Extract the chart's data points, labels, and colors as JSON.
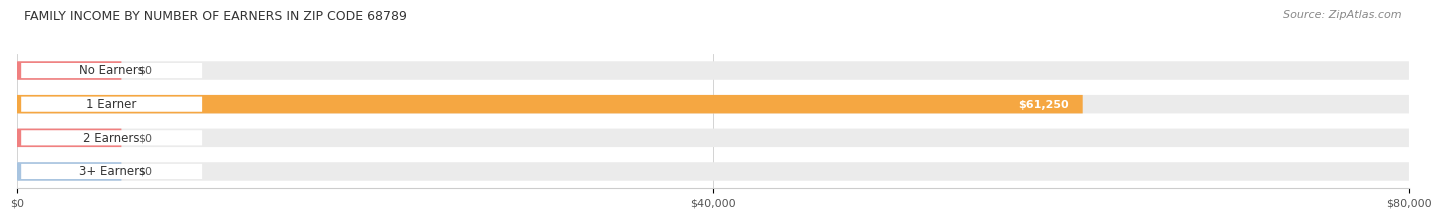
{
  "title": "FAMILY INCOME BY NUMBER OF EARNERS IN ZIP CODE 68789",
  "source": "Source: ZipAtlas.com",
  "categories": [
    "No Earners",
    "1 Earner",
    "2 Earners",
    "3+ Earners"
  ],
  "values": [
    0,
    61250,
    0,
    0
  ],
  "bar_colors": [
    "#f08080",
    "#f5a742",
    "#f08080",
    "#a8c4e0"
  ],
  "bar_bg_color": "#ebebeb",
  "xlim": [
    0,
    80000
  ],
  "xticks": [
    0,
    40000,
    80000
  ],
  "xtick_labels": [
    "$0",
    "$40,000",
    "$80,000"
  ],
  "value_labels": [
    "$0",
    "$61,250",
    "$0",
    "$0"
  ],
  "bar_height": 0.55,
  "fig_width": 14.06,
  "fig_height": 2.32,
  "title_fontsize": 9,
  "source_fontsize": 8,
  "label_fontsize": 8.5,
  "value_fontsize": 8,
  "tick_fontsize": 8
}
